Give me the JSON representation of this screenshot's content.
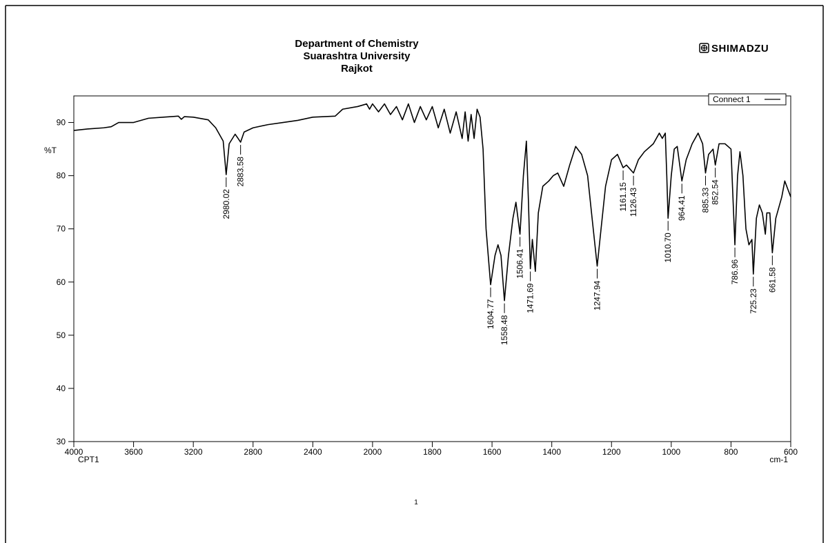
{
  "chart_data": {
    "type": "line",
    "title": "Department of Chemistry",
    "subtitle": [
      "Suarashtra University",
      "Rajkot"
    ],
    "brand": "SHIMADZU",
    "sample": "CPT1",
    "xlabel": "cm-1",
    "ylabel": "%T",
    "page_number": "1",
    "xlim": [
      4000,
      600
    ],
    "xbreak": 2000,
    "xticks": [
      4000,
      3600,
      3200,
      2800,
      2400,
      2000,
      1800,
      1600,
      1400,
      1200,
      1000,
      800,
      600
    ],
    "ylim": [
      30,
      95
    ],
    "yticks": [
      30,
      40,
      50,
      60,
      70,
      80,
      90
    ],
    "legend": "top-right",
    "x": [
      4000,
      3900,
      3800,
      3750,
      3700,
      3600,
      3500,
      3400,
      3300,
      3280,
      3260,
      3200,
      3100,
      3050,
      3000,
      2980.02,
      2960,
      2920,
      2900,
      2883.58,
      2860,
      2800,
      2700,
      2600,
      2500,
      2400,
      2250,
      2200,
      2100,
      2050,
      2040,
      2020,
      2000,
      1980,
      1960,
      1940,
      1920,
      1900,
      1880,
      1860,
      1840,
      1820,
      1800,
      1780,
      1760,
      1740,
      1720,
      1700,
      1690,
      1680,
      1670,
      1660,
      1650,
      1640,
      1630,
      1620,
      1604.77,
      1590,
      1580,
      1570,
      1558.48,
      1545,
      1530,
      1520,
      1506.41,
      1495,
      1485,
      1478,
      1471.69,
      1465,
      1455,
      1445,
      1430,
      1410,
      1395,
      1380,
      1360,
      1340,
      1320,
      1300,
      1280,
      1265,
      1247.94,
      1235,
      1220,
      1200,
      1180,
      1161.15,
      1150,
      1126.43,
      1110,
      1090,
      1060,
      1040,
      1030,
      1020,
      1015,
      1010.7,
      1000,
      990,
      980,
      964.41,
      950,
      930,
      910,
      895,
      885.33,
      875,
      860,
      852.54,
      840,
      820,
      800,
      795,
      786.96,
      778,
      770,
      760,
      750,
      740,
      730,
      725.23,
      715,
      705,
      695,
      685,
      680,
      670,
      661.58,
      650,
      630,
      620,
      600
    ],
    "series": [
      {
        "name": "Connect 1",
        "color": "#000000",
        "values": [
          88.5,
          88.8,
          89,
          89.2,
          90,
          90,
          90.8,
          91,
          91.2,
          90.6,
          91.1,
          91,
          90.5,
          89,
          86.5,
          80.2,
          86,
          87.8,
          87,
          86.3,
          88.2,
          89,
          89.6,
          90,
          90.4,
          91,
          91.2,
          92.5,
          93,
          93.4,
          93.5,
          92.5,
          93.5,
          92,
          93.5,
          91.5,
          93,
          90.5,
          93.5,
          90,
          93,
          90.5,
          93,
          89,
          92.5,
          88,
          92,
          87,
          92,
          86.5,
          91.5,
          87,
          92.5,
          91,
          85,
          70,
          59.5,
          65,
          67,
          65,
          56.5,
          65,
          72,
          75,
          69,
          80,
          86.5,
          75,
          62.5,
          68,
          62,
          73,
          78,
          79,
          80,
          80.5,
          78,
          82,
          85.5,
          84,
          80,
          72,
          63,
          70,
          78,
          83,
          84,
          81.5,
          82,
          80.5,
          83,
          84.5,
          86,
          88,
          87,
          88,
          80,
          72,
          80,
          85,
          85.5,
          79,
          83,
          86,
          88,
          86,
          80.5,
          84,
          85,
          82,
          86,
          86,
          85,
          78,
          67,
          80,
          84.5,
          80,
          70,
          67,
          68,
          61.5,
          72,
          74.5,
          73,
          69,
          73,
          73,
          65.5,
          72,
          76,
          79,
          76
        ]
      }
    ],
    "peaks": [
      {
        "value": 2980.02,
        "label": "2980.02"
      },
      {
        "value": 2883.58,
        "label": "2883.58"
      },
      {
        "value": 1604.77,
        "label": "1604.77"
      },
      {
        "value": 1558.48,
        "label": "1558.48"
      },
      {
        "value": 1506.41,
        "label": "1506.41"
      },
      {
        "value": 1471.69,
        "label": "1471.69"
      },
      {
        "value": 1247.94,
        "label": "1247.94"
      },
      {
        "value": 1161.15,
        "label": "1161.15"
      },
      {
        "value": 1126.43,
        "label": "1126.43"
      },
      {
        "value": 1010.7,
        "label": "1010.70"
      },
      {
        "value": 964.41,
        "label": "964.41"
      },
      {
        "value": 885.33,
        "label": "885.33"
      },
      {
        "value": 852.54,
        "label": "852.54"
      },
      {
        "value": 786.96,
        "label": "786.96"
      },
      {
        "value": 725.23,
        "label": "725.23"
      },
      {
        "value": 661.58,
        "label": "661.58"
      }
    ]
  }
}
